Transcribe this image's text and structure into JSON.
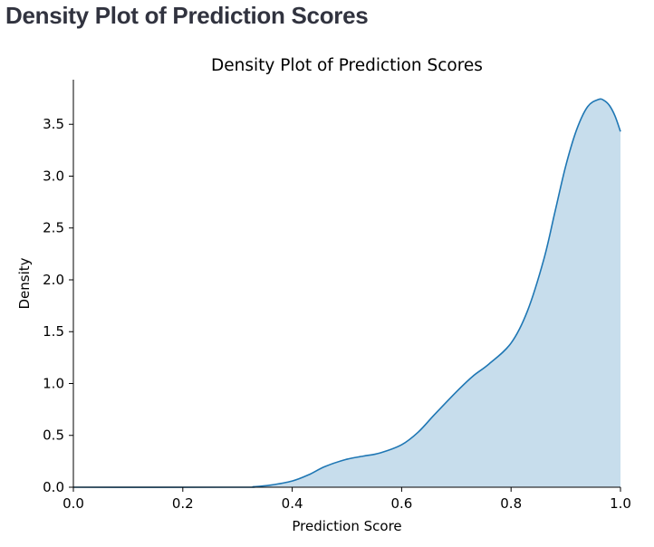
{
  "page": {
    "heading": "Density Plot of Prediction Scores"
  },
  "chart_data": {
    "type": "area",
    "title": "Density Plot of Prediction Scores",
    "xlabel": "Prediction Score",
    "ylabel": "Density",
    "xlim": [
      0.0,
      1.0
    ],
    "ylim": [
      0.0,
      3.93
    ],
    "xticks": [
      0.0,
      0.2,
      0.4,
      0.6,
      0.8,
      1.0
    ],
    "xtick_labels": [
      "0.0",
      "0.2",
      "0.4",
      "0.6",
      "0.8",
      "1.0"
    ],
    "yticks": [
      0.0,
      0.5,
      1.0,
      1.5,
      2.0,
      2.5,
      3.0,
      3.5
    ],
    "ytick_labels": [
      "0.0",
      "0.5",
      "1.0",
      "1.5",
      "2.0",
      "2.5",
      "3.0",
      "3.5"
    ],
    "grid": false,
    "legend": "none",
    "line_color": "#1f77b4",
    "fill_color": "#1f77b4",
    "fill_opacity": 0.25,
    "series": [
      {
        "x": [
          0.0,
          0.3,
          0.33,
          0.36,
          0.4,
          0.43,
          0.46,
          0.5,
          0.53,
          0.56,
          0.6,
          0.63,
          0.66,
          0.7,
          0.73,
          0.76,
          0.8,
          0.83,
          0.86,
          0.88,
          0.9,
          0.92,
          0.94,
          0.96,
          0.97,
          0.98,
          0.99,
          1.0
        ],
        "y": [
          0.0,
          0.0,
          0.005,
          0.02,
          0.06,
          0.12,
          0.2,
          0.27,
          0.3,
          0.33,
          0.41,
          0.53,
          0.7,
          0.92,
          1.07,
          1.19,
          1.39,
          1.7,
          2.2,
          2.65,
          3.1,
          3.45,
          3.67,
          3.74,
          3.73,
          3.68,
          3.58,
          3.43
        ]
      }
    ]
  }
}
